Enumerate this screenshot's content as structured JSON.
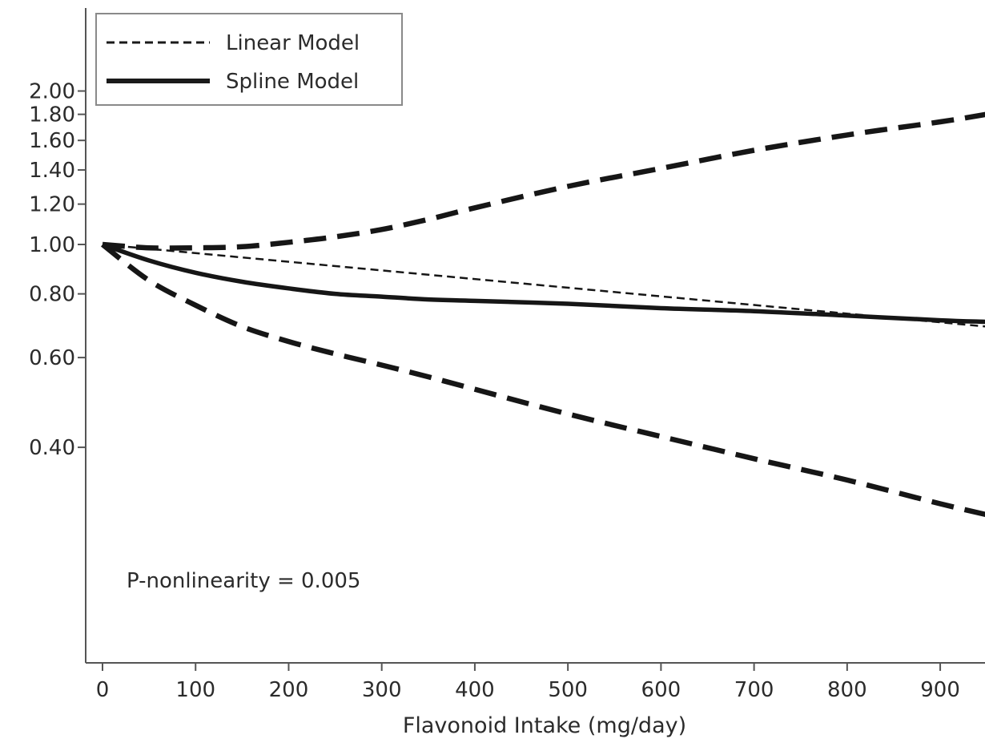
{
  "chart_data": {
    "type": "line",
    "xlabel": "Flavonoid Intake (mg/day)",
    "ylabel": "",
    "y_scale": "log",
    "xlim": [
      0,
      950
    ],
    "x_ticks": [
      0,
      100,
      200,
      300,
      400,
      500,
      600,
      700,
      800,
      900
    ],
    "x_tick_labels": [
      "0",
      "100",
      "200",
      "300",
      "400",
      "500",
      "600",
      "700",
      "800",
      "900"
    ],
    "y_ticks": [
      0.4,
      0.6,
      0.8,
      1.0,
      1.2,
      1.4,
      1.6,
      1.8,
      2.0
    ],
    "y_tick_labels": [
      "0.40",
      "0.60",
      "0.80",
      "1.00",
      "1.20",
      "1.40",
      "1.60",
      "1.80",
      "2.00"
    ],
    "grid": false,
    "legend": {
      "position": "top-left",
      "entries": [
        {
          "label": "Linear Model",
          "style": "dashed-thin"
        },
        {
          "label": "Spline Model",
          "style": "solid-thick"
        }
      ]
    },
    "annotation": "P-nonlinearity = 0.005",
    "series": [
      {
        "name": "Linear Model",
        "style": "dashed-thin",
        "x": [
          0,
          950
        ],
        "y": [
          1.0,
          0.69
        ]
      },
      {
        "name": "Spline Model",
        "style": "solid-thick",
        "x": [
          0,
          50,
          100,
          150,
          200,
          250,
          300,
          350,
          400,
          500,
          600,
          700,
          800,
          900,
          950
        ],
        "y": [
          1.0,
          0.93,
          0.88,
          0.845,
          0.82,
          0.8,
          0.79,
          0.78,
          0.775,
          0.765,
          0.75,
          0.74,
          0.725,
          0.71,
          0.705
        ]
      },
      {
        "style": "dashed-thick",
        "x": [
          0,
          50,
          100,
          150,
          200,
          250,
          300,
          350,
          400,
          500,
          600,
          700,
          800,
          900,
          950
        ],
        "y": [
          1.0,
          0.985,
          0.985,
          0.99,
          1.01,
          1.035,
          1.07,
          1.12,
          1.18,
          1.3,
          1.41,
          1.53,
          1.64,
          1.74,
          1.8
        ]
      },
      {
        "style": "dashed-thick",
        "x": [
          0,
          50,
          100,
          150,
          200,
          250,
          300,
          350,
          400,
          500,
          600,
          700,
          800,
          900,
          950
        ],
        "y": [
          1.0,
          0.85,
          0.76,
          0.69,
          0.645,
          0.61,
          0.58,
          0.55,
          0.52,
          0.465,
          0.42,
          0.38,
          0.345,
          0.31,
          0.295
        ]
      }
    ]
  }
}
